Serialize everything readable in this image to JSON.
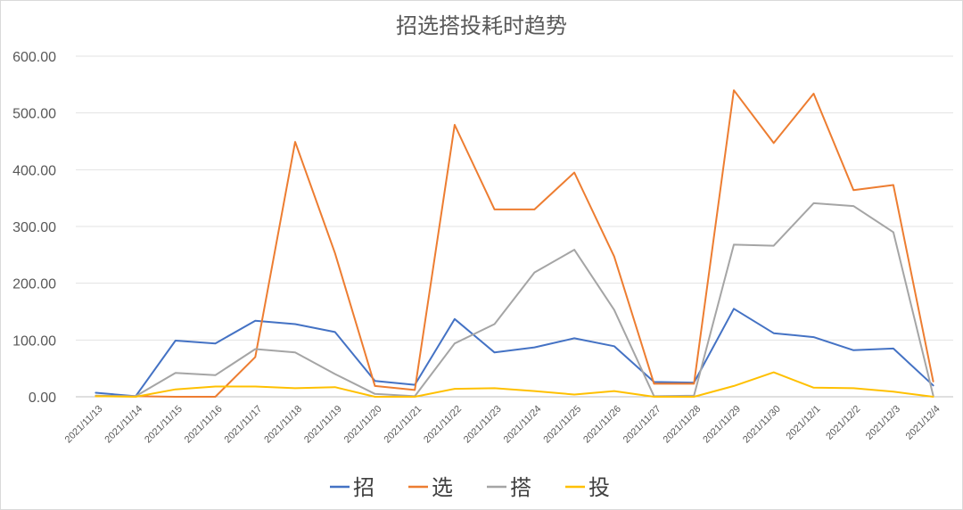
{
  "chart_data": {
    "type": "line",
    "title": "招选搭投耗时趋势",
    "xlabel": "",
    "ylabel": "",
    "ylim": [
      0,
      600
    ],
    "yticks": [
      "0.00",
      "100.00",
      "200.00",
      "300.00",
      "400.00",
      "500.00",
      "600.00"
    ],
    "grid": true,
    "legend_position": "bottom",
    "categories": [
      "2021/11/13",
      "2021/11/14",
      "2021/11/15",
      "2021/11/16",
      "2021/11/17",
      "2021/11/18",
      "2021/11/19",
      "2021/11/20",
      "2021/11/21",
      "2021/11/22",
      "2021/11/23",
      "2021/11/24",
      "2021/11/25",
      "2021/11/26",
      "2021/11/27",
      "2021/11/28",
      "2021/11/29",
      "2021/11/30",
      "2021/12/1",
      "2021/12/2",
      "2021/12/3",
      "2021/12/4"
    ],
    "series": [
      {
        "name": "招",
        "color": "#4472C4",
        "values": [
          7,
          1,
          99,
          94,
          134,
          128,
          114,
          28,
          21,
          137,
          78,
          87,
          103,
          89,
          26,
          25,
          155,
          112,
          105,
          82,
          85,
          20
        ]
      },
      {
        "name": "选",
        "color": "#ED7D31",
        "values": [
          1,
          1,
          0,
          0,
          70,
          449,
          253,
          19,
          12,
          479,
          330,
          330,
          395,
          247,
          23,
          23,
          540,
          447,
          534,
          364,
          373,
          27
        ]
      },
      {
        "name": "搭",
        "color": "#A5A5A5",
        "values": [
          2,
          1,
          42,
          38,
          84,
          78,
          40,
          5,
          1,
          94,
          128,
          219,
          259,
          153,
          1,
          2,
          268,
          266,
          341,
          336,
          290,
          2
        ]
      },
      {
        "name": "投",
        "color": "#FFC000",
        "values": [
          1,
          0,
          13,
          18,
          18,
          15,
          17,
          0,
          0,
          14,
          15,
          10,
          4,
          10,
          0,
          0,
          19,
          43,
          16,
          15,
          9,
          0
        ]
      }
    ]
  }
}
